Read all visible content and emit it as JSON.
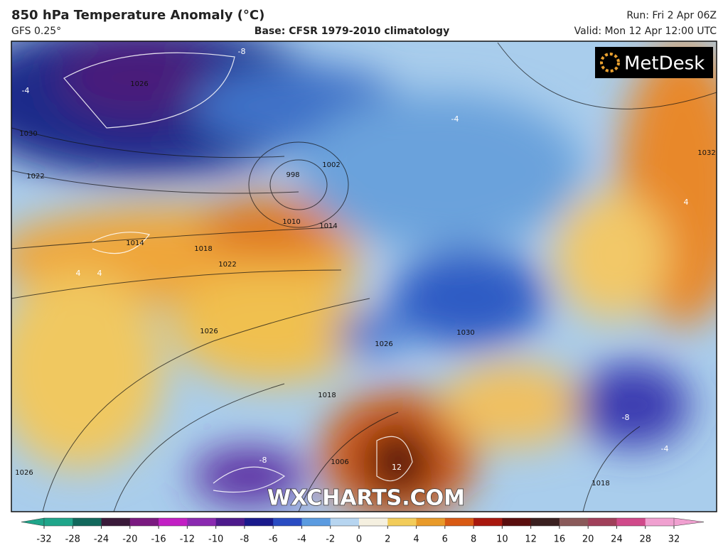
{
  "header": {
    "title": "850 hPa Temperature Anomaly (°C)",
    "model": "GFS 0.25°",
    "base": "Base: CFSR 1979-2010 climatology",
    "run": "Run: Fri 2 Apr 06Z",
    "valid": "Valid: Mon 12 Apr 12:00 UTC"
  },
  "logo": "MetDesk",
  "watermark": "WXCHARTS.COM",
  "map_labels": [
    "-8",
    "-4",
    "1026",
    "1030",
    "1022",
    "998",
    "1002",
    "1010",
    "1014",
    "1014",
    "1018",
    "1022",
    "1026",
    "1026",
    "1030",
    "4",
    "4",
    "-4",
    "12",
    "1006",
    "1018",
    "-8",
    "-8",
    "4",
    "1032",
    "1018",
    "1026",
    "-4"
  ],
  "colorbar": {
    "ticks": [
      -32,
      -28,
      -24,
      -20,
      -16,
      -12,
      -10,
      -8,
      -6,
      -4,
      -2,
      0,
      2,
      4,
      6,
      8,
      10,
      12,
      16,
      20,
      24,
      28,
      32
    ],
    "colors": [
      "#1fa58a",
      "#12685c",
      "#3a1a3a",
      "#7a1a80",
      "#c21fc4",
      "#8a2ab0",
      "#4d1a8c",
      "#1a1a8c",
      "#2a4cc2",
      "#5b9be0",
      "#b7d5f0",
      "#f5f0e0",
      "#f2cc5a",
      "#e89a2a",
      "#d85a14",
      "#a8180e",
      "#5a0e0e",
      "#3a2020",
      "#8a5a5a",
      "#a0405a",
      "#d04a8a",
      "#f0a0d0"
    ]
  }
}
